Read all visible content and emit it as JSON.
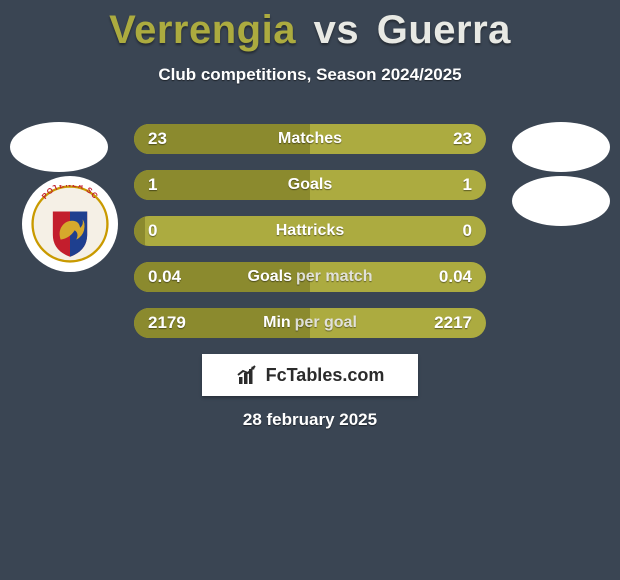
{
  "title": {
    "player1": "Verrengia",
    "vs": "vs",
    "player2": "Guerra"
  },
  "subtitle": "Club competitions, Season 2024/2025",
  "colors": {
    "background": "#3a4553",
    "bar_base": "#acab40",
    "bar_fill": "#8b8a2e",
    "player1_accent": "#acab3f",
    "player2_accent": "#e8e9e4",
    "white": "#ffffff"
  },
  "club_badge": {
    "top_text": "POTENZA SC",
    "shield_colors": {
      "left": "#c31e2d",
      "right": "#1e3f8f"
    },
    "lion_color": "#d6a92c"
  },
  "rows": [
    {
      "left": "23",
      "right": "23",
      "label_l": "Matches",
      "label_r": "",
      "fill_pct": 50
    },
    {
      "left": "1",
      "right": "1",
      "label_l": "Goals",
      "label_r": "",
      "fill_pct": 50
    },
    {
      "left": "0",
      "right": "0",
      "label_l": "Hattricks",
      "label_r": "",
      "fill_pct": 3
    },
    {
      "left": "0.04",
      "right": "0.04",
      "label_l": "Goals",
      "label_r": "per match",
      "fill_pct": 50
    },
    {
      "left": "2179",
      "right": "2217",
      "label_l": "Min",
      "label_r": "per goal",
      "fill_pct": 50
    }
  ],
  "brand": "FcTables.com",
  "date": "28 february 2025"
}
